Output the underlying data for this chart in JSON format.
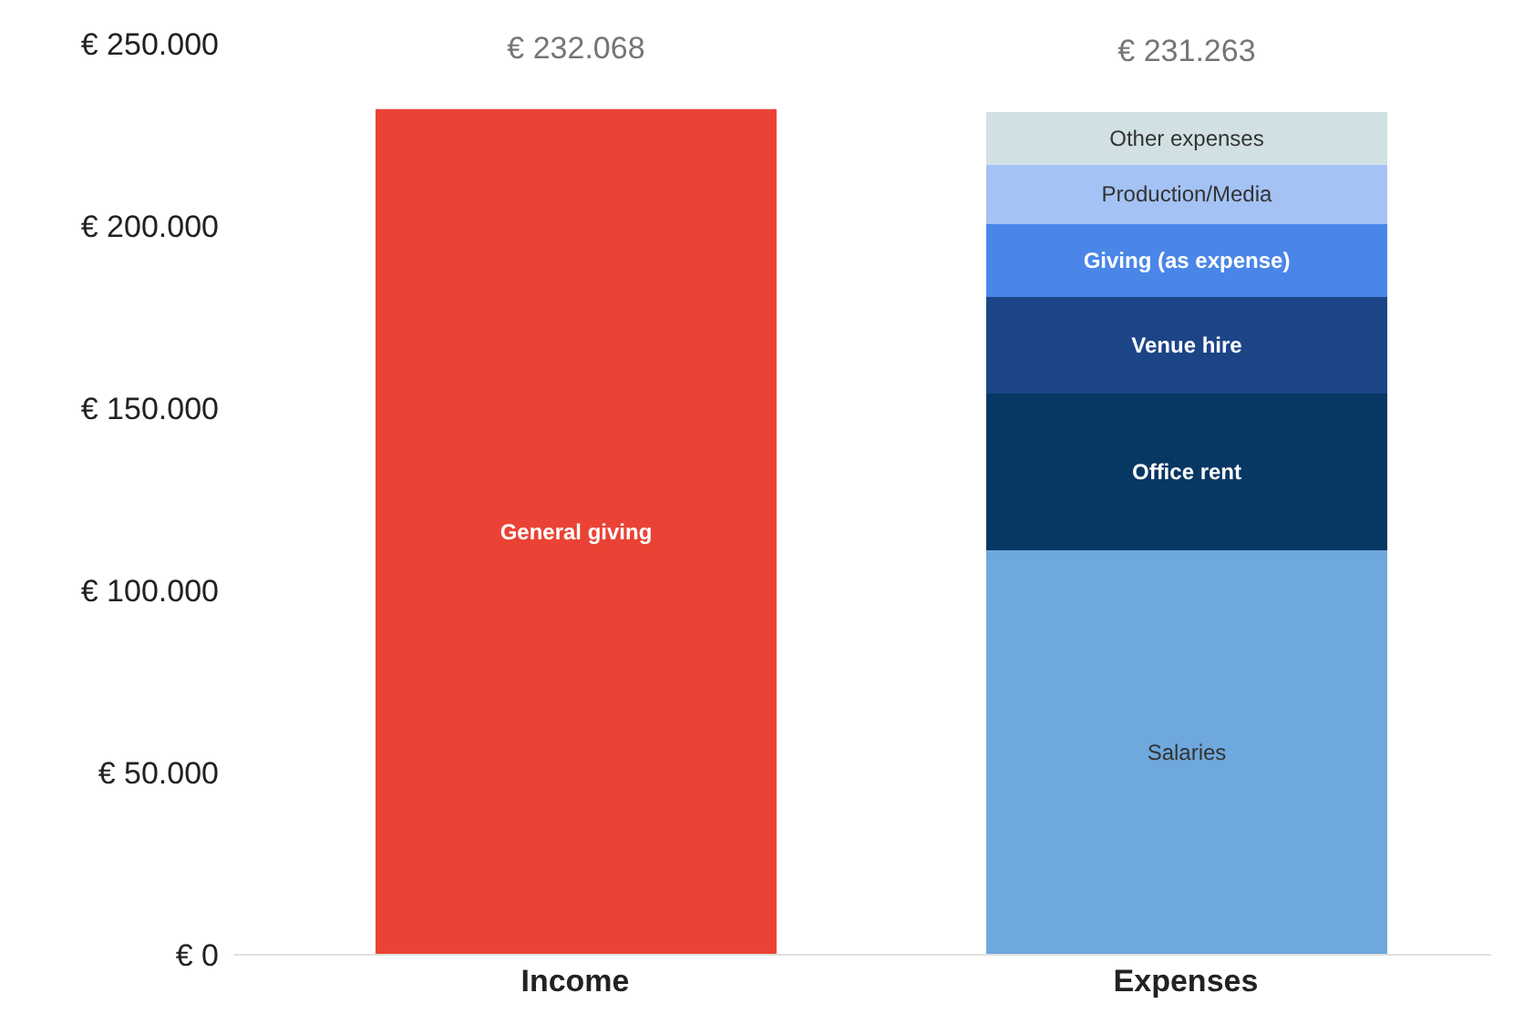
{
  "chart_data": {
    "type": "bar",
    "stacked": true,
    "categories": [
      "Income",
      "Expenses"
    ],
    "series": [
      {
        "name": "General giving",
        "color": "#ea4335",
        "values": [
          232068,
          null
        ]
      },
      {
        "name": "Salaries",
        "color": "#6fa8dc",
        "values": [
          null,
          111000
        ]
      },
      {
        "name": "Office rent",
        "color": "#073763",
        "values": [
          null,
          43000
        ]
      },
      {
        "name": "Venue hire",
        "color": "#1c4587",
        "values": [
          null,
          26500
        ]
      },
      {
        "name": "Giving (as expense)",
        "color": "#4a86e8",
        "values": [
          null,
          20000
        ]
      },
      {
        "name": "Production/Media",
        "color": "#a4c2f4",
        "values": [
          null,
          16300
        ]
      },
      {
        "name": "Other expenses",
        "color": "#d0e0e3",
        "values": [
          null,
          14463
        ]
      }
    ],
    "totals": [
      "€ 232.068",
      "€ 231.263"
    ],
    "ylim": [
      0,
      250000
    ],
    "yticks": [
      {
        "value": 0,
        "label": "€ 0"
      },
      {
        "value": 50000,
        "label": "€ 50.000"
      },
      {
        "value": 100000,
        "label": "€ 100.000"
      },
      {
        "value": 150000,
        "label": "€ 150.000"
      },
      {
        "value": 200000,
        "label": "€ 200.000"
      },
      {
        "value": 250000,
        "label": "€ 250.000"
      }
    ],
    "grid": false,
    "legend": false
  }
}
